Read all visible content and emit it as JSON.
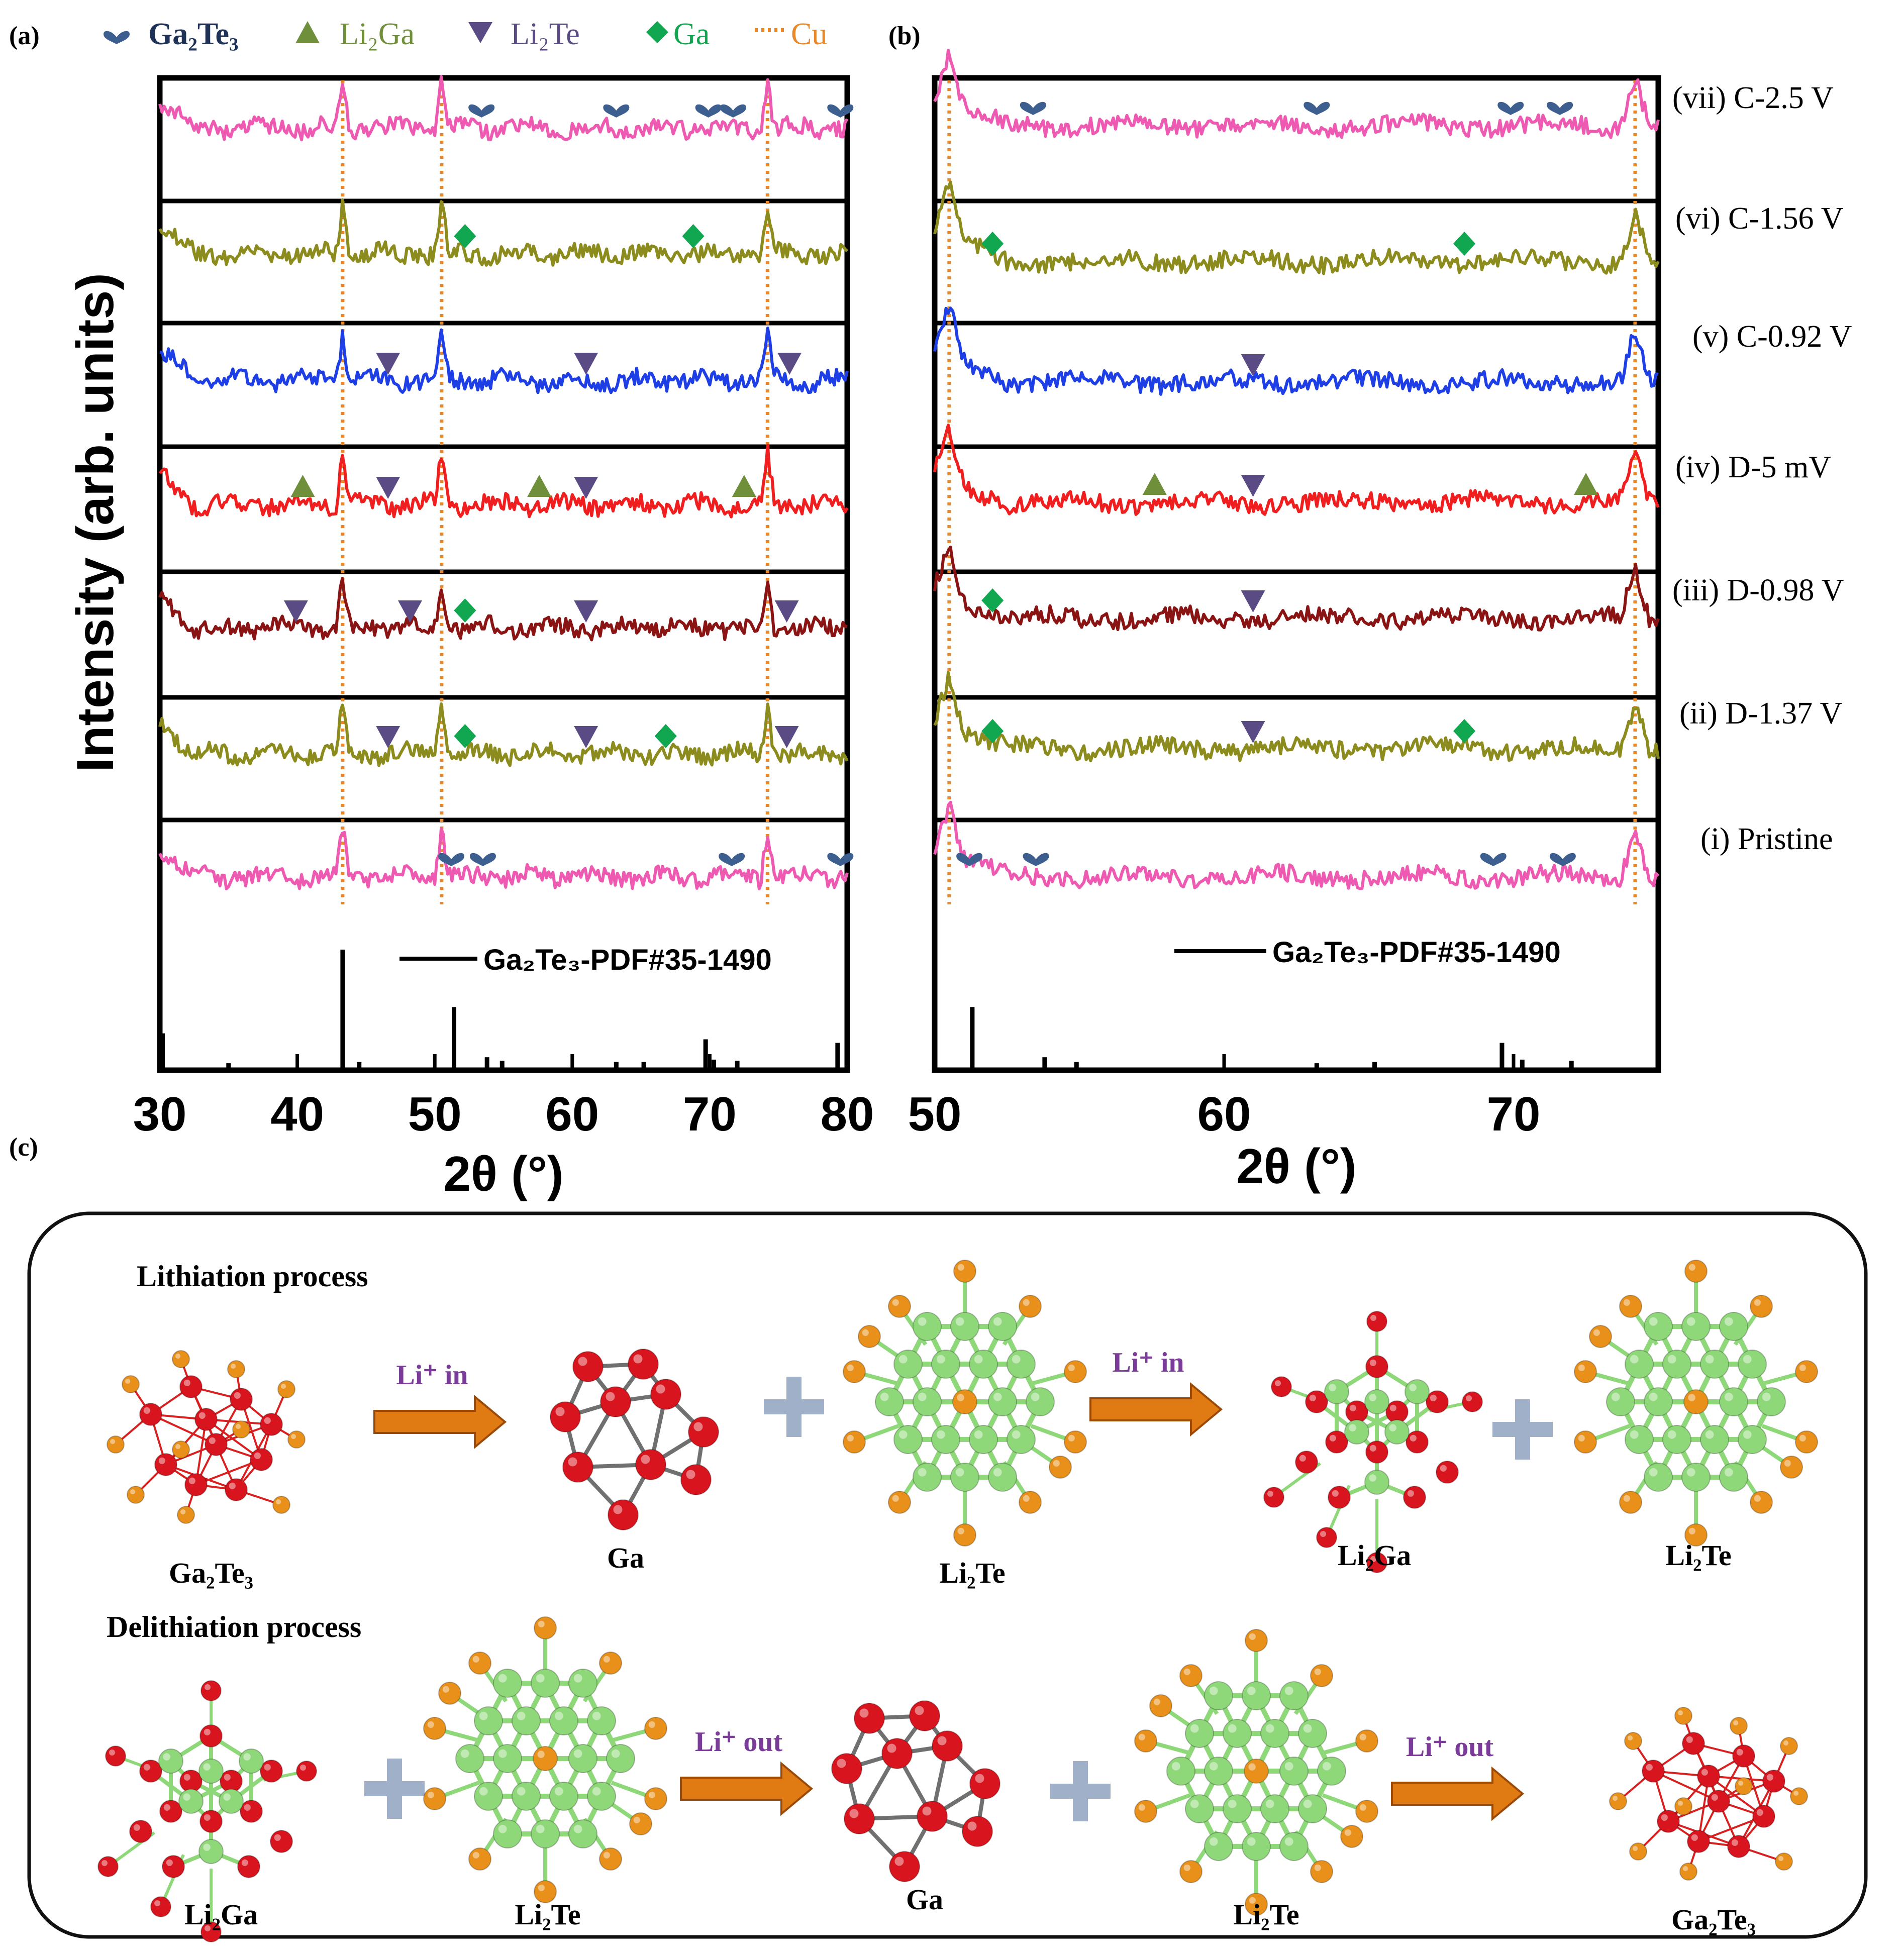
{
  "panel_labels": {
    "a": "(a)",
    "b": "(b)",
    "c": "(c)"
  },
  "legend": [
    {
      "label": "Ga₂Te₃",
      "marker": "heart",
      "color": "#3c5f8f",
      "bold": true
    },
    {
      "label": "Li₂Ga",
      "marker": "triangle-up",
      "color": "#6f8f3a"
    },
    {
      "label": "Li₂Te",
      "marker": "triangle-down",
      "color": "#5b4b85"
    },
    {
      "label": "Ga",
      "marker": "diamond",
      "color": "#11a650"
    },
    {
      "label": "Cu",
      "marker": "dotted-line",
      "color": "#e8882a"
    }
  ],
  "chart_data": [
    {
      "id": "a",
      "type": "line",
      "title": "",
      "xlabel": "2θ (°)",
      "ylabel": "Intensity (arb. units)",
      "xlim": [
        30,
        80
      ],
      "xticks": [
        30,
        40,
        50,
        60,
        70,
        80
      ],
      "cu_lines": [
        43.3,
        50.5,
        74.2
      ],
      "reference": {
        "label": "Ga₂Te₃-PDF#35-1490",
        "peaks": [
          [
            30.2,
            0.3
          ],
          [
            35.0,
            0.05
          ],
          [
            43.3,
            1.0
          ],
          [
            44.5,
            0.06
          ],
          [
            51.4,
            0.52
          ],
          [
            53.8,
            0.1
          ],
          [
            54.9,
            0.07
          ],
          [
            63.2,
            0.06
          ],
          [
            65.2,
            0.06
          ],
          [
            69.7,
            0.25
          ],
          [
            70.3,
            0.08
          ],
          [
            72.0,
            0.07
          ],
          [
            79.3,
            0.22
          ]
        ]
      },
      "series": [
        {
          "name": "(vii) C-2.5 V",
          "color": "#ee5ab2",
          "markers": [
            {
              "type": "Ga₂Te₃",
              "x": [
                53.4,
                63.2,
                69.9,
                71.7,
                79.5
              ]
            }
          ]
        },
        {
          "name": "(vi) C-1.56 V",
          "color": "#8c8c1e",
          "markers": [
            {
              "type": "Ga",
              "x": [
                52.2,
                68.8
              ]
            }
          ]
        },
        {
          "name": "(v) C-0.92 V",
          "color": "#1f3fe6",
          "markers": [
            {
              "type": "Li₂Te",
              "x": [
                46.6,
                61.0,
                75.8
              ]
            }
          ]
        },
        {
          "name": "(iv) D-5 mV",
          "color": "#f01e1e",
          "markers": [
            {
              "type": "Li₂Ga",
              "x": [
                40.4,
                57.6,
                72.5
              ]
            },
            {
              "type": "Li₂Te",
              "x": [
                46.6,
                61.0
              ]
            }
          ]
        },
        {
          "name": "(iii) D-0.98 V",
          "color": "#8a1414",
          "markers": [
            {
              "type": "Li₂Te",
              "x": [
                39.9,
                48.2,
                61.0,
                75.6
              ]
            },
            {
              "type": "Ga",
              "x": [
                52.2
              ]
            }
          ]
        },
        {
          "name": "(ii) D-1.37 V",
          "color": "#8c8c1e",
          "markers": [
            {
              "type": "Li₂Te",
              "x": [
                46.6,
                61.0,
                75.6
              ]
            },
            {
              "type": "Ga",
              "x": [
                52.2,
                66.8
              ]
            }
          ]
        },
        {
          "name": "(i) Pristine",
          "color": "#ee5ab2",
          "markers": [
            {
              "type": "Ga₂Te₃",
              "x": [
                51.2,
                53.5,
                71.6,
                79.5
              ]
            }
          ]
        }
      ]
    },
    {
      "id": "b",
      "type": "line",
      "title": "",
      "xlabel": "2θ (°)",
      "ylabel": "",
      "xlim": [
        50,
        75
      ],
      "xticks": [
        50,
        60,
        70
      ],
      "cu_lines": [
        50.5,
        74.2
      ],
      "reference": {
        "label": "Ga₂Te₃-PDF#35-1490",
        "peaks": [
          [
            51.3,
            0.52
          ],
          [
            53.8,
            0.1
          ],
          [
            54.9,
            0.06
          ],
          [
            63.2,
            0.05
          ],
          [
            65.2,
            0.06
          ],
          [
            69.6,
            0.22
          ],
          [
            70.3,
            0.08
          ],
          [
            72.0,
            0.07
          ]
        ]
      },
      "series": [
        {
          "name": "(vii) C-2.5 V",
          "color": "#ee5ab2",
          "markers": [
            {
              "type": "Ga₂Te₃",
              "x": [
                53.4,
                63.2,
                69.9,
                71.6
              ]
            }
          ]
        },
        {
          "name": "(vi) C-1.56 V",
          "color": "#8c8c1e",
          "markers": [
            {
              "type": "Ga",
              "x": [
                52.0,
                68.3
              ]
            }
          ]
        },
        {
          "name": "(v) C-0.92 V",
          "color": "#1f3fe6",
          "markers": [
            {
              "type": "Li₂Te",
              "x": [
                61.0
              ]
            }
          ]
        },
        {
          "name": "(iv) D-5 mV",
          "color": "#f01e1e",
          "markers": [
            {
              "type": "Li₂Ga",
              "x": [
                57.6,
                72.5
              ]
            },
            {
              "type": "Li₂Te",
              "x": [
                61.0
              ]
            }
          ]
        },
        {
          "name": "(iii) D-0.98 V",
          "color": "#8a1414",
          "markers": [
            {
              "type": "Ga",
              "x": [
                52.0
              ]
            },
            {
              "type": "Li₂Te",
              "x": [
                61.0
              ]
            }
          ]
        },
        {
          "name": "(ii) D-1.37 V",
          "color": "#8c8c1e",
          "markers": [
            {
              "type": "Ga",
              "x": [
                52.0,
                68.3
              ]
            },
            {
              "type": "Li₂Te",
              "x": [
                61.0
              ]
            }
          ]
        },
        {
          "name": "(i) Pristine",
          "color": "#ee5ab2",
          "markers": [
            {
              "type": "Ga₂Te₃",
              "x": [
                51.2,
                53.5,
                69.3,
                71.7
              ]
            }
          ]
        }
      ]
    }
  ],
  "series_labels": [
    "(vii) C-2.5 V",
    "(vi) C-1.56 V",
    "(v) C-0.92 V",
    "(iv) D-5 mV",
    "(iii) D-0.98 V",
    "(ii) D-1.37 V",
    "(i) Pristine"
  ],
  "diagram": {
    "lithiation_title": "Lithiation process",
    "delithiation_title": "Delithiation process",
    "li_in": "Li⁺ in",
    "li_out": "Li⁺ out",
    "lithiation_labels": [
      "Ga₂Te₃",
      "Ga",
      "Li₂Te",
      "Li₂Ga",
      "Li₂Te"
    ],
    "delithiation_labels": [
      "Li₂Ga",
      "Li₂Te",
      "Ga",
      "Li₂Te",
      "Ga₂Te₃"
    ],
    "colors": {
      "ga_atom": "#d8141e",
      "te_atom": "#e8901a",
      "li_atom": "#8fd87a",
      "bond_red": "#d82020",
      "bond_grey": "#707070",
      "arrow": "#e07a12",
      "plus": "#9fb0c8",
      "arrow_text": "#7a3c98"
    }
  }
}
